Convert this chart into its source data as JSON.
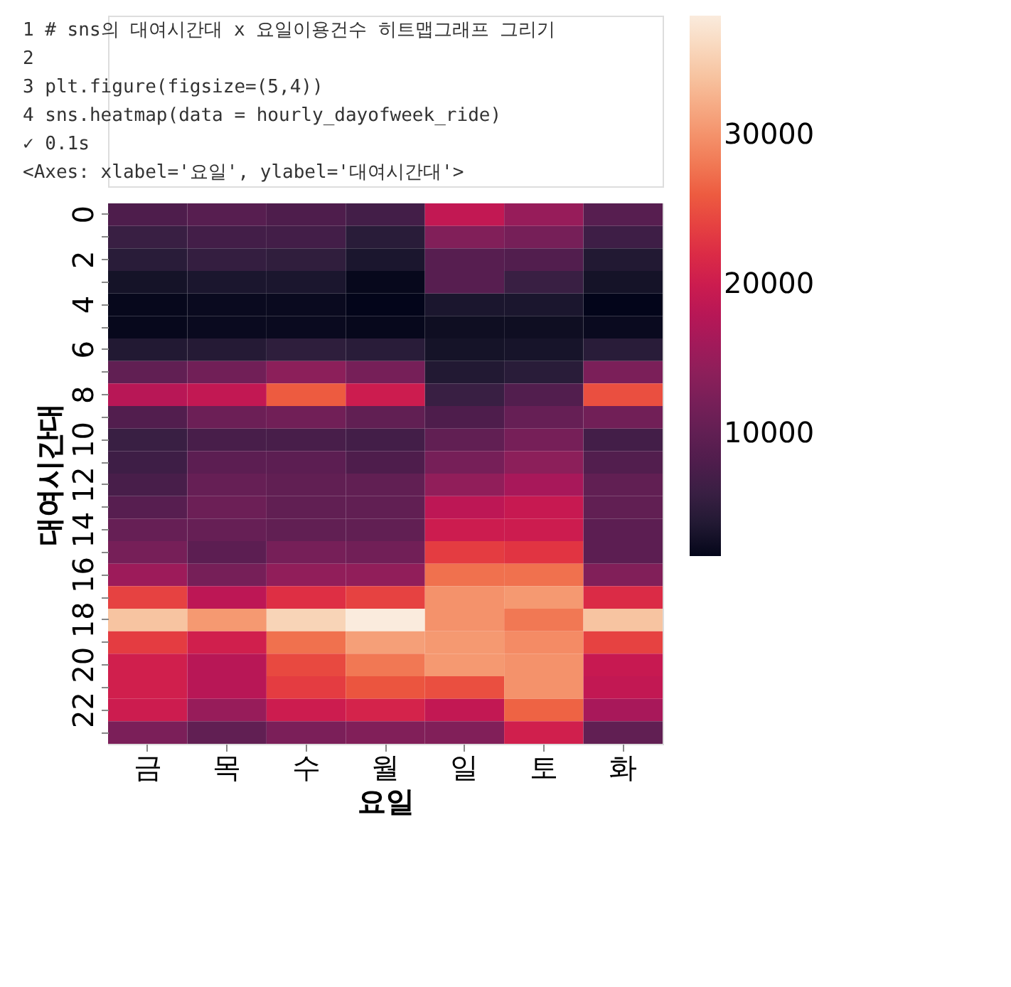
{
  "chart_data": {
    "type": "heatmap",
    "annotations": [
      "1  # sns의 대여시간대 x 요일이용건수 히트맵그래프 그리기",
      "2",
      "3  plt.figure(figsize=(5,4))",
      "4  sns.heatmap(data = hourly_dayofweek_ride)",
      "✓  0.1s",
      "<Axes: xlabel='요일', ylabel='대여시간대'>"
    ],
    "xlabel": "요일",
    "ylabel": "대여시간대",
    "categories": [
      "금",
      "목",
      "수",
      "월",
      "일",
      "토",
      "화"
    ],
    "y_categories": [
      "0",
      null,
      "2",
      null,
      "4",
      null,
      "6",
      null,
      "8",
      null,
      "10",
      null,
      "12",
      null,
      "14",
      null,
      "16",
      null,
      "18",
      null,
      "20",
      null,
      "22",
      null
    ],
    "cells": [
      [
        8000,
        9000,
        8000,
        7000,
        19000,
        15000,
        9000
      ],
      [
        6000,
        7000,
        7000,
        4500,
        13000,
        12000,
        6500
      ],
      [
        4500,
        5500,
        5000,
        3500,
        9000,
        8500,
        4000
      ],
      [
        3000,
        3500,
        3500,
        2000,
        9000,
        6000,
        3000
      ],
      [
        2000,
        2200,
        2200,
        1800,
        3500,
        3500,
        1800
      ],
      [
        2000,
        2200,
        2200,
        2000,
        2500,
        2500,
        2200
      ],
      [
        4000,
        4200,
        4800,
        4500,
        3000,
        3200,
        4500
      ],
      [
        10000,
        11500,
        14000,
        12000,
        4000,
        4500,
        12500
      ],
      [
        18000,
        19000,
        26000,
        20000,
        6000,
        8500,
        25000
      ],
      [
        8500,
        11000,
        11500,
        10000,
        8000,
        10500,
        11500
      ],
      [
        6000,
        7500,
        7500,
        7000,
        10000,
        12000,
        7000
      ],
      [
        6500,
        9500,
        9500,
        8000,
        12000,
        14000,
        8500
      ],
      [
        7500,
        10500,
        10000,
        10000,
        14500,
        16500,
        10000
      ],
      [
        9000,
        11000,
        10000,
        10000,
        18500,
        19500,
        10000
      ],
      [
        10500,
        10500,
        10000,
        10000,
        20000,
        20000,
        9500
      ],
      [
        12000,
        9500,
        12000,
        11500,
        23500,
        23000,
        9500
      ],
      [
        15500,
        12000,
        14500,
        14500,
        27500,
        27500,
        13000
      ],
      [
        24000,
        18500,
        22500,
        24000,
        30000,
        30500,
        22000
      ],
      [
        34000,
        30500,
        35500,
        38000,
        30000,
        28000,
        34000
      ],
      [
        23500,
        20500,
        27500,
        31000,
        30500,
        29500,
        24000
      ],
      [
        20500,
        18000,
        24500,
        28000,
        30500,
        30000,
        19500
      ],
      [
        20500,
        18000,
        23500,
        25500,
        25000,
        30000,
        19000
      ],
      [
        20000,
        15000,
        20000,
        21000,
        19000,
        26500,
        16500
      ],
      [
        12500,
        10000,
        12500,
        13000,
        13000,
        20500,
        10000
      ]
    ],
    "clim": [
      1800,
      38000
    ],
    "cticks": [
      10000,
      20000,
      30000
    ]
  }
}
